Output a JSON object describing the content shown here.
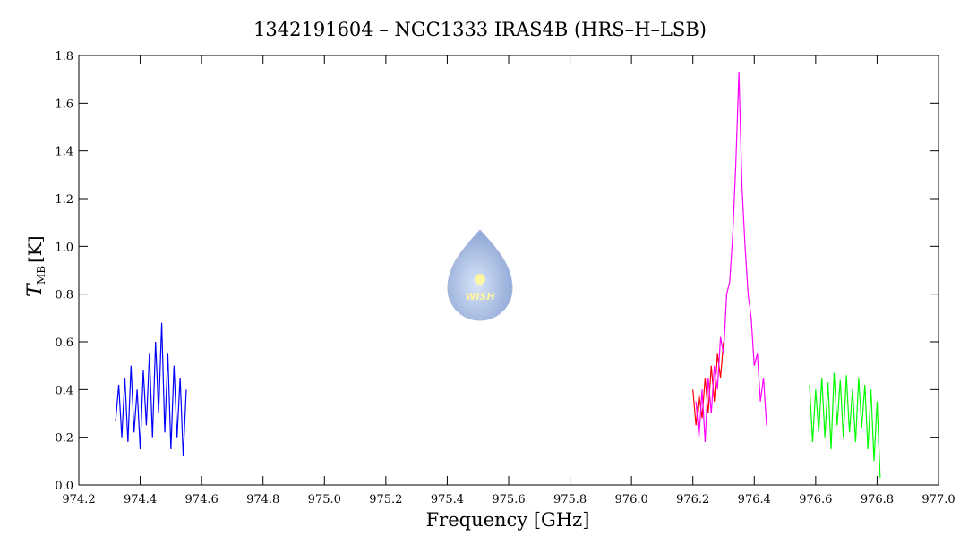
{
  "chart_data": {
    "type": "line",
    "title": "1342191604 – NGC1333 IRAS4B (HRS–H–LSB)",
    "xlabel": "Frequency [GHz]",
    "ylabel_symbol": "T",
    "ylabel_subscript": "MB",
    "ylabel_unit": "[K]",
    "logo_text": "WISH",
    "xlim": [
      974.2,
      977.0
    ],
    "xticks": [
      974.2,
      974.4,
      974.6,
      974.8,
      {
        "value": 975,
        "label": "975.0"
      },
      975.2,
      975.4,
      975.6,
      975.8,
      {
        "value": 976,
        "label": "976.0"
      },
      976.2,
      976.4,
      976.6,
      976.8,
      {
        "value": 977,
        "label": "977.0"
      }
    ],
    "ylim": [
      0,
      1.8
    ],
    "yticks": [
      {
        "value": 0,
        "label": "0.0"
      },
      0.2,
      0.4,
      0.6,
      0.8,
      {
        "value": 1,
        "label": "1.0"
      },
      1.2,
      1.4,
      1.6,
      1.8
    ],
    "series": [
      {
        "color": "#0000ff",
        "x": [
          974.32,
          974.33,
          974.34,
          974.35,
          974.36,
          974.37,
          974.38,
          974.39,
          974.4,
          974.41,
          974.42,
          974.43,
          974.44,
          974.45,
          974.46,
          974.47,
          974.48,
          974.49,
          974.5,
          974.51,
          974.52,
          974.53,
          974.54,
          974.55
        ],
        "values": [
          0.27,
          0.42,
          0.2,
          0.45,
          0.18,
          0.5,
          0.22,
          0.4,
          0.15,
          0.48,
          0.25,
          0.55,
          0.2,
          0.6,
          0.3,
          0.68,
          0.22,
          0.55,
          0.15,
          0.5,
          0.2,
          0.45,
          0.12,
          0.4
        ]
      },
      {
        "color": "#ff0000",
        "x": [
          976.2,
          976.21,
          976.22,
          976.23,
          976.24,
          976.25,
          976.26,
          976.27,
          976.28,
          976.29,
          976.3
        ],
        "values": [
          0.4,
          0.25,
          0.38,
          0.28,
          0.45,
          0.3,
          0.5,
          0.35,
          0.55,
          0.45,
          0.6
        ]
      },
      {
        "color": "#ff00ff",
        "x": [
          976.21,
          976.22,
          976.23,
          976.24,
          976.25,
          976.26,
          976.27,
          976.28,
          976.29,
          976.3,
          976.31,
          976.32,
          976.33,
          976.34,
          976.35,
          976.36,
          976.37,
          976.38,
          976.39,
          976.4,
          976.41,
          976.42,
          976.43,
          976.44
        ],
        "values": [
          0.35,
          0.2,
          0.4,
          0.18,
          0.45,
          0.3,
          0.5,
          0.4,
          0.62,
          0.55,
          0.8,
          0.85,
          1.05,
          1.35,
          1.73,
          1.25,
          1.0,
          0.8,
          0.7,
          0.5,
          0.55,
          0.35,
          0.45,
          0.25
        ]
      },
      {
        "color": "#00ff00",
        "x": [
          976.58,
          976.59,
          976.6,
          976.61,
          976.62,
          976.63,
          976.64,
          976.65,
          976.66,
          976.67,
          976.68,
          976.69,
          976.7,
          976.71,
          976.72,
          976.73,
          976.74,
          976.75,
          976.76,
          976.77,
          976.78,
          976.79,
          976.8,
          976.81
        ],
        "values": [
          0.42,
          0.18,
          0.4,
          0.22,
          0.45,
          0.2,
          0.43,
          0.15,
          0.47,
          0.25,
          0.44,
          0.2,
          0.46,
          0.22,
          0.4,
          0.18,
          0.45,
          0.24,
          0.42,
          0.15,
          0.4,
          0.1,
          0.35,
          0.03
        ]
      }
    ]
  }
}
